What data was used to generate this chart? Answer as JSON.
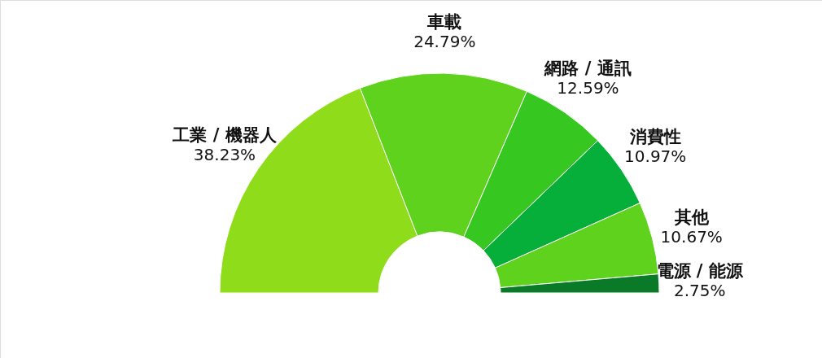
{
  "chart_data": {
    "type": "donut",
    "categories": [
      "工業 / 機器人",
      "車載",
      "網路 / 通訊",
      "消費性",
      "其他",
      "電源 / 能源"
    ],
    "values": [
      38.23,
      24.79,
      12.59,
      10.97,
      10.67,
      2.75
    ],
    "value_labels": [
      "38.23%",
      "24.79%",
      "12.59%",
      "10.97%",
      "10.67%",
      "2.75%"
    ],
    "colors": [
      "#8fdc1a",
      "#5fd21e",
      "#36c820",
      "#06ae3a",
      "#5fd21e",
      "#0a7a28"
    ]
  }
}
